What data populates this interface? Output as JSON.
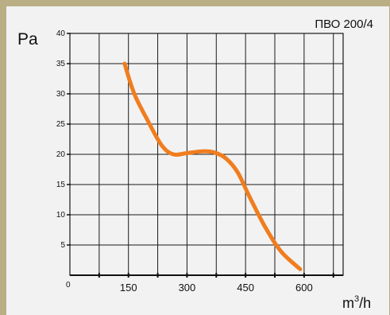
{
  "chart_data": {
    "type": "line",
    "title": "ПВО 200/4",
    "xlabel": "m",
    "xlabel_superscript": "3",
    "xlabel_suffix": "/h",
    "ylabel": "Pa",
    "xlim": [
      0,
      700
    ],
    "ylim": [
      0,
      40
    ],
    "x_ticks": [
      150,
      300,
      450,
      600
    ],
    "x_origin_label": "0",
    "y_ticks": [
      5,
      10,
      15,
      20,
      25,
      30,
      35,
      40
    ],
    "grid": true,
    "series": [
      {
        "color": "#f07d1e",
        "x": [
          140,
          165,
          200,
          235,
          265,
          300,
          340,
          370,
          400,
          430,
          460,
          500,
          540,
          590
        ],
        "y": [
          35,
          30,
          25.5,
          21.5,
          20,
          20.2,
          20.5,
          20.3,
          19.3,
          17,
          13,
          8,
          4,
          1
        ]
      }
    ]
  }
}
